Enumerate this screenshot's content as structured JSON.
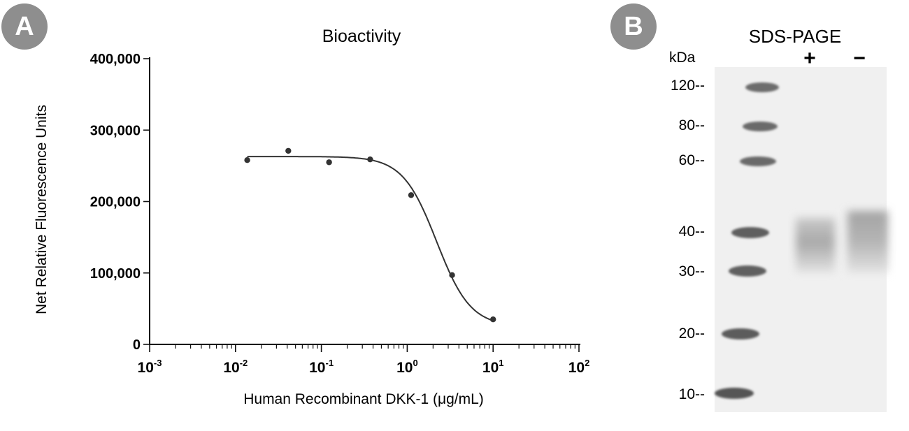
{
  "panels": {
    "a_label": "A",
    "b_label": "B"
  },
  "chart_data": {
    "type": "scatter",
    "title": "Bioactivity",
    "xlabel": "Human Recombinant DKK-1 (μg/mL)",
    "ylabel": "Net Relative Fluorescence Units",
    "x_scale": "log10",
    "xlim": [
      0.001,
      100
    ],
    "ylim": [
      0,
      400000
    ],
    "x_ticks": [
      {
        "base": "10",
        "exp": "-3"
      },
      {
        "base": "10",
        "exp": "-2"
      },
      {
        "base": "10",
        "exp": "-1"
      },
      {
        "base": "10",
        "exp": "0"
      },
      {
        "base": "10",
        "exp": "1"
      },
      {
        "base": "10",
        "exp": "2"
      }
    ],
    "y_tick_values": [
      0,
      100000,
      200000,
      300000,
      400000
    ],
    "y_tick_labels": [
      "0",
      "100,000",
      "200,000",
      "300,000",
      "400,000"
    ],
    "series": [
      {
        "x": [
          0.0137,
          0.0412,
          0.123,
          0.37,
          1.11,
          3.33,
          10.0
        ],
        "y": [
          258000,
          271000,
          255000,
          259000,
          209000,
          97000,
          35000
        ]
      }
    ],
    "fit": {
      "model": "4PL",
      "top": 263000,
      "bottom": 25000,
      "ec50": 2.2,
      "hill": 2.2,
      "x_range": [
        0.0137,
        10.0
      ]
    },
    "grid": false,
    "legend": "none"
  },
  "gel": {
    "title": "SDS-PAGE",
    "unit_label": "kDa",
    "lanes": [
      "+",
      "−"
    ],
    "markers": [
      "120--",
      "80--",
      "60--",
      "40--",
      "30--",
      "20--",
      "10--"
    ],
    "colors": {
      "background": "#ececec",
      "band": "#5d5d5d",
      "sample_band": "#8a8a8a"
    }
  }
}
